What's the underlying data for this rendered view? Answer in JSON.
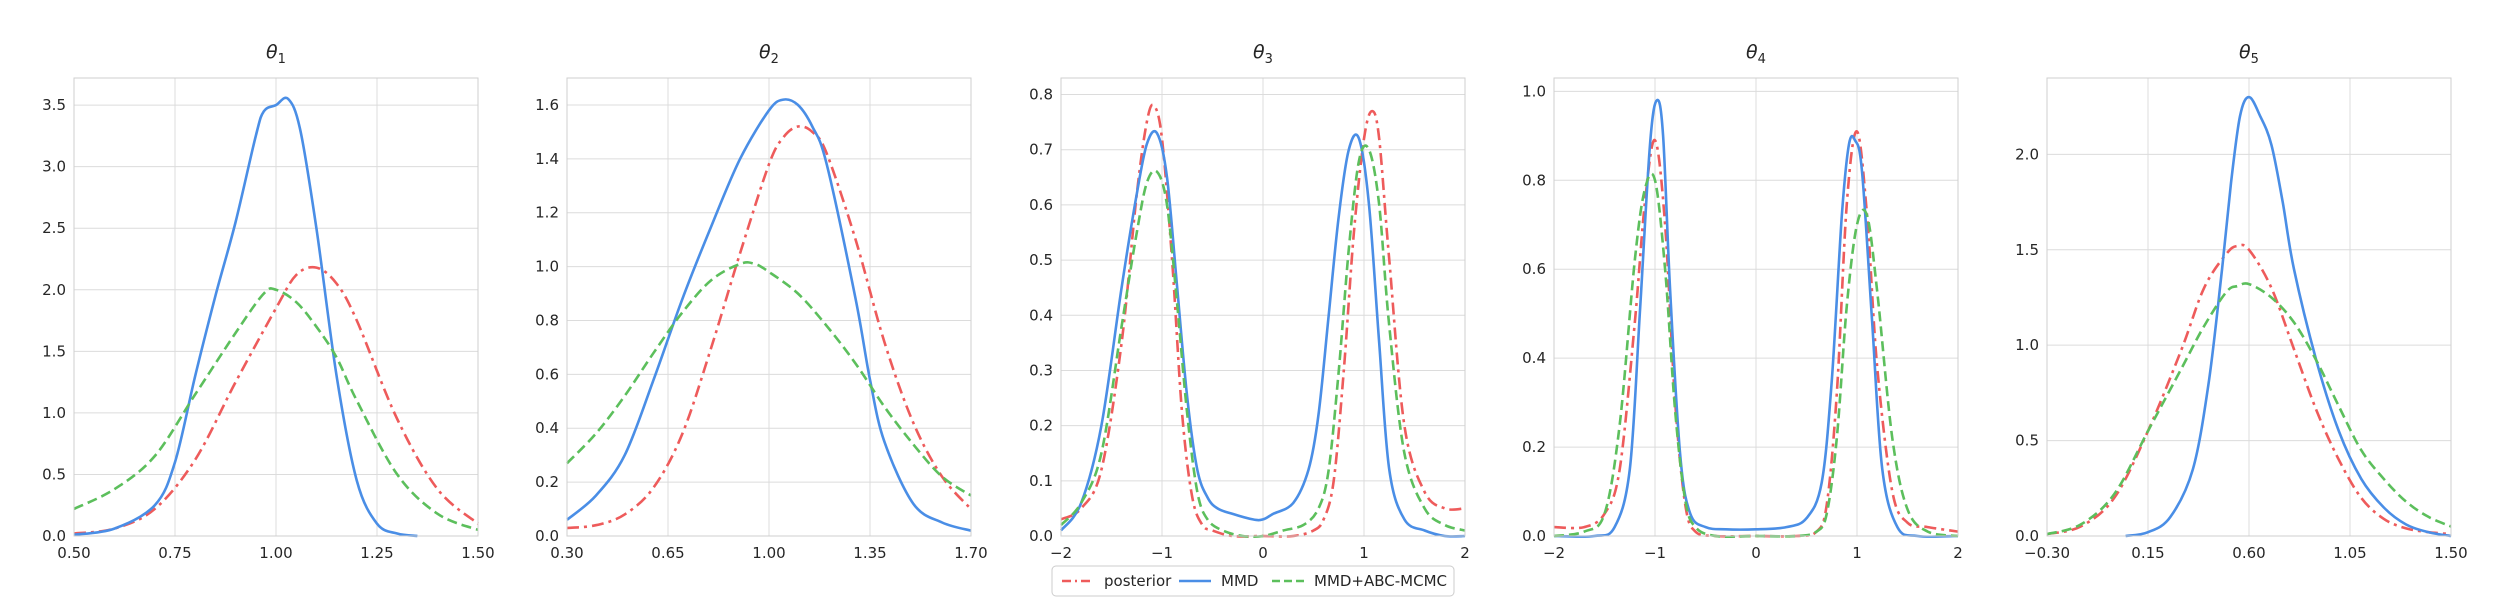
{
  "legend": {
    "entries": [
      {
        "name": "posterior",
        "color": "#ee5b5b",
        "dash": "dashdot"
      },
      {
        "name": "MMD",
        "color": "#4a8ee6",
        "dash": "solid"
      },
      {
        "name": "MMD+ABC-MCMC",
        "color": "#5cbf5c",
        "dash": "dashed"
      }
    ],
    "placement": "bottom-center"
  },
  "chart_data": [
    {
      "type": "line",
      "title": "θ",
      "title_subscript": "1",
      "grid": true,
      "xlim": [
        0.5,
        1.5
      ],
      "ylim": [
        0,
        3.72
      ],
      "xticks": [
        0.5,
        0.75,
        1.0,
        1.25,
        1.5
      ],
      "xtick_labels": [
        "0.50",
        "0.75",
        "1.00",
        "1.25",
        "1.50"
      ],
      "yticks": [
        0,
        0.5,
        1.0,
        1.5,
        2.0,
        2.5,
        3.0,
        3.5
      ],
      "ytick_labels": [
        "0.0",
        "0.5",
        "1.0",
        "1.5",
        "2.0",
        "2.5",
        "3.0",
        "3.5"
      ],
      "series": [
        {
          "name": "posterior",
          "x": [
            0.5,
            0.6,
            0.7,
            0.8,
            0.9,
            1.0,
            1.05,
            1.1,
            1.15,
            1.2,
            1.3,
            1.4,
            1.5
          ],
          "y": [
            0.02,
            0.06,
            0.22,
            0.62,
            1.25,
            1.85,
            2.12,
            2.18,
            2.05,
            1.75,
            0.95,
            0.38,
            0.1
          ]
        },
        {
          "name": "MMD",
          "x": [
            0.5,
            0.6,
            0.7,
            0.75,
            0.8,
            0.85,
            0.9,
            0.95,
            0.97,
            1.0,
            1.03,
            1.06,
            1.1,
            1.15,
            1.2,
            1.25,
            1.3,
            1.35
          ],
          "y": [
            0.01,
            0.06,
            0.25,
            0.6,
            1.3,
            1.95,
            2.55,
            3.25,
            3.45,
            3.5,
            3.55,
            3.3,
            2.5,
            1.3,
            0.45,
            0.1,
            0.02,
            0.0
          ]
        },
        {
          "name": "MMD+ABC-MCMC",
          "x": [
            0.5,
            0.6,
            0.7,
            0.8,
            0.9,
            0.97,
            1.0,
            1.05,
            1.1,
            1.15,
            1.2,
            1.3,
            1.4,
            1.5
          ],
          "y": [
            0.22,
            0.38,
            0.65,
            1.15,
            1.65,
            1.97,
            2.0,
            1.9,
            1.7,
            1.45,
            1.1,
            0.5,
            0.18,
            0.05
          ]
        }
      ]
    },
    {
      "type": "line",
      "title": "θ",
      "title_subscript": "2",
      "grid": true,
      "xlim": [
        0.3,
        1.7
      ],
      "ylim": [
        0,
        1.7
      ],
      "xticks": [
        0.3,
        0.65,
        1.0,
        1.35,
        1.7
      ],
      "xtick_labels": [
        "0.30",
        "0.65",
        "1.00",
        "1.35",
        "1.70"
      ],
      "yticks": [
        0,
        0.2,
        0.4,
        0.6,
        0.8,
        1.0,
        1.2,
        1.4,
        1.6
      ],
      "ytick_labels": [
        "0.0",
        "0.2",
        "0.4",
        "0.6",
        "0.8",
        "1.0",
        "1.2",
        "1.4",
        "1.6"
      ],
      "series": [
        {
          "name": "posterior",
          "x": [
            0.3,
            0.4,
            0.5,
            0.6,
            0.7,
            0.8,
            0.9,
            1.0,
            1.05,
            1.1,
            1.15,
            1.2,
            1.3,
            1.4,
            1.5,
            1.6,
            1.7
          ],
          "y": [
            0.03,
            0.04,
            0.08,
            0.18,
            0.38,
            0.7,
            1.05,
            1.38,
            1.48,
            1.52,
            1.5,
            1.42,
            1.1,
            0.72,
            0.42,
            0.22,
            0.1
          ]
        },
        {
          "name": "MMD",
          "x": [
            0.3,
            0.4,
            0.5,
            0.6,
            0.7,
            0.8,
            0.9,
            1.0,
            1.05,
            1.1,
            1.15,
            1.2,
            1.3,
            1.35,
            1.4,
            1.5,
            1.6,
            1.7
          ],
          "y": [
            0.06,
            0.15,
            0.3,
            0.58,
            0.88,
            1.15,
            1.4,
            1.58,
            1.62,
            1.6,
            1.52,
            1.38,
            0.88,
            0.58,
            0.35,
            0.12,
            0.05,
            0.02
          ]
        },
        {
          "name": "MMD+ABC-MCMC",
          "x": [
            0.3,
            0.4,
            0.5,
            0.6,
            0.7,
            0.8,
            0.9,
            0.95,
            1.0,
            1.1,
            1.2,
            1.3,
            1.4,
            1.5,
            1.6,
            1.7
          ],
          "y": [
            0.27,
            0.38,
            0.52,
            0.68,
            0.83,
            0.95,
            1.01,
            1.01,
            0.98,
            0.9,
            0.78,
            0.64,
            0.48,
            0.34,
            0.22,
            0.15
          ]
        }
      ]
    },
    {
      "type": "line",
      "title": "θ",
      "title_subscript": "3",
      "grid": true,
      "xlim": [
        -2,
        2
      ],
      "ylim": [
        0,
        0.83
      ],
      "xticks": [
        -2,
        -1,
        0,
        1,
        2
      ],
      "xtick_labels": [
        "−2",
        "−1",
        "0",
        "1",
        "2"
      ],
      "yticks": [
        0,
        0.1,
        0.2,
        0.3,
        0.4,
        0.5,
        0.6,
        0.7,
        0.8
      ],
      "ytick_labels": [
        "0.0",
        "0.1",
        "0.2",
        "0.3",
        "0.4",
        "0.5",
        "0.6",
        "0.7",
        "0.8"
      ],
      "series": [
        {
          "name": "posterior",
          "x": [
            -2,
            -1.8,
            -1.6,
            -1.4,
            -1.25,
            -1.15,
            -1.08,
            -1.0,
            -0.9,
            -0.8,
            -0.7,
            -0.6,
            -0.5,
            -0.3,
            0,
            0.3,
            0.5,
            0.6,
            0.7,
            0.8,
            0.9,
            1.0,
            1.08,
            1.15,
            1.25,
            1.4,
            1.6,
            1.8,
            2.0
          ],
          "y": [
            0.03,
            0.05,
            0.12,
            0.35,
            0.62,
            0.75,
            0.78,
            0.72,
            0.5,
            0.22,
            0.07,
            0.02,
            0.01,
            0.0,
            0.0,
            0.0,
            0.01,
            0.03,
            0.1,
            0.3,
            0.55,
            0.72,
            0.77,
            0.72,
            0.5,
            0.2,
            0.08,
            0.05,
            0.05
          ]
        },
        {
          "name": "MMD",
          "x": [
            -2,
            -1.8,
            -1.6,
            -1.4,
            -1.25,
            -1.15,
            -1.05,
            -0.95,
            -0.85,
            -0.75,
            -0.65,
            -0.55,
            -0.45,
            -0.3,
            -0.1,
            0,
            0.1,
            0.3,
            0.45,
            0.55,
            0.65,
            0.75,
            0.85,
            0.95,
            1.05,
            1.15,
            1.25,
            1.4,
            1.6,
            1.8,
            2.0
          ],
          "y": [
            0.01,
            0.06,
            0.2,
            0.45,
            0.62,
            0.71,
            0.73,
            0.65,
            0.45,
            0.25,
            0.12,
            0.07,
            0.05,
            0.04,
            0.03,
            0.03,
            0.04,
            0.06,
            0.12,
            0.22,
            0.4,
            0.58,
            0.7,
            0.72,
            0.6,
            0.35,
            0.12,
            0.03,
            0.01,
            0.0,
            0.0
          ]
        },
        {
          "name": "MMD+ABC-MCMC",
          "x": [
            -2,
            -1.8,
            -1.6,
            -1.4,
            -1.25,
            -1.15,
            -1.05,
            -0.95,
            -0.85,
            -0.75,
            -0.65,
            -0.55,
            -0.4,
            -0.2,
            0,
            0.2,
            0.4,
            0.55,
            0.65,
            0.75,
            0.85,
            0.95,
            1.05,
            1.15,
            1.25,
            1.4,
            1.6,
            1.8,
            2.0
          ],
          "y": [
            0.02,
            0.06,
            0.15,
            0.38,
            0.55,
            0.64,
            0.66,
            0.6,
            0.42,
            0.22,
            0.08,
            0.03,
            0.01,
            0.0,
            0.0,
            0.01,
            0.02,
            0.05,
            0.12,
            0.3,
            0.52,
            0.68,
            0.7,
            0.6,
            0.38,
            0.15,
            0.05,
            0.02,
            0.01
          ]
        }
      ]
    },
    {
      "type": "line",
      "title": "θ",
      "title_subscript": "4",
      "grid": true,
      "xlim": [
        -2,
        2
      ],
      "ylim": [
        0,
        1.03
      ],
      "xticks": [
        -2,
        -1,
        0,
        1,
        2
      ],
      "xtick_labels": [
        "−2",
        "−1",
        "0",
        "1",
        "2"
      ],
      "yticks": [
        0,
        0.2,
        0.4,
        0.6,
        0.8,
        1.0
      ],
      "ytick_labels": [
        "0.0",
        "0.2",
        "0.4",
        "0.6",
        "0.8",
        "1.0"
      ],
      "series": [
        {
          "name": "posterior",
          "x": [
            -2,
            -1.7,
            -1.5,
            -1.35,
            -1.2,
            -1.1,
            -1.0,
            -0.9,
            -0.8,
            -0.7,
            -0.6,
            -0.4,
            0,
            0.4,
            0.6,
            0.7,
            0.8,
            0.9,
            1.0,
            1.1,
            1.2,
            1.35,
            1.5,
            1.7,
            2.0
          ],
          "y": [
            0.02,
            0.02,
            0.05,
            0.15,
            0.48,
            0.75,
            0.89,
            0.7,
            0.3,
            0.07,
            0.01,
            0.0,
            0.0,
            0.0,
            0.01,
            0.07,
            0.32,
            0.75,
            0.91,
            0.72,
            0.38,
            0.1,
            0.03,
            0.02,
            0.01
          ]
        },
        {
          "name": "MMD",
          "x": [
            -2,
            -1.6,
            -1.4,
            -1.25,
            -1.15,
            -1.05,
            -0.98,
            -0.92,
            -0.85,
            -0.75,
            -0.65,
            -0.5,
            -0.3,
            0,
            0.3,
            0.5,
            0.65,
            0.75,
            0.85,
            0.92,
            0.98,
            1.05,
            1.15,
            1.25,
            1.4,
            1.6,
            2.0
          ],
          "y": [
            0.0,
            0.0,
            0.02,
            0.15,
            0.5,
            0.88,
            0.98,
            0.9,
            0.55,
            0.18,
            0.05,
            0.02,
            0.015,
            0.015,
            0.02,
            0.04,
            0.12,
            0.35,
            0.72,
            0.88,
            0.89,
            0.82,
            0.48,
            0.15,
            0.02,
            0.0,
            0.0
          ]
        },
        {
          "name": "MMD+ABC-MCMC",
          "x": [
            -2,
            -1.7,
            -1.5,
            -1.35,
            -1.2,
            -1.1,
            -1.0,
            -0.9,
            -0.8,
            -0.7,
            -0.6,
            -0.4,
            0,
            0.4,
            0.6,
            0.7,
            0.8,
            0.9,
            1.0,
            1.1,
            1.2,
            1.35,
            1.5,
            1.7,
            2.0
          ],
          "y": [
            0.0,
            0.01,
            0.05,
            0.25,
            0.62,
            0.78,
            0.8,
            0.6,
            0.28,
            0.08,
            0.02,
            0.0,
            0.0,
            0.0,
            0.01,
            0.05,
            0.22,
            0.52,
            0.7,
            0.72,
            0.55,
            0.22,
            0.06,
            0.01,
            0.0
          ]
        }
      ]
    },
    {
      "type": "line",
      "title": "θ",
      "title_subscript": "5",
      "grid": true,
      "xlim": [
        -0.3,
        1.5
      ],
      "ylim": [
        0,
        2.4
      ],
      "xticks": [
        -0.3,
        0.15,
        0.6,
        1.05,
        1.5
      ],
      "xtick_labels": [
        "−0.30",
        "0.15",
        "0.60",
        "1.05",
        "1.50"
      ],
      "yticks": [
        0,
        0.5,
        1.0,
        1.5,
        2.0
      ],
      "ytick_labels": [
        "0.0",
        "0.5",
        "1.0",
        "1.5",
        "2.0"
      ],
      "series": [
        {
          "name": "posterior",
          "x": [
            -0.3,
            -0.15,
            0,
            0.15,
            0.3,
            0.4,
            0.5,
            0.55,
            0.6,
            0.7,
            0.8,
            0.9,
            1.0,
            1.1,
            1.2,
            1.3,
            1.4,
            1.5
          ],
          "y": [
            0.01,
            0.05,
            0.2,
            0.55,
            0.98,
            1.3,
            1.48,
            1.52,
            1.5,
            1.3,
            0.98,
            0.66,
            0.4,
            0.2,
            0.09,
            0.04,
            0.02,
            0.01
          ]
        },
        {
          "name": "MMD",
          "x": [
            0.05,
            0.15,
            0.25,
            0.35,
            0.42,
            0.48,
            0.52,
            0.56,
            0.6,
            0.65,
            0.7,
            0.75,
            0.8,
            0.9,
            1.0,
            1.1,
            1.2,
            1.3,
            1.4,
            1.5
          ],
          "y": [
            0.0,
            0.02,
            0.1,
            0.35,
            0.8,
            1.4,
            1.85,
            2.2,
            2.3,
            2.2,
            2.05,
            1.75,
            1.4,
            0.92,
            0.55,
            0.3,
            0.15,
            0.06,
            0.02,
            0.0
          ]
        },
        {
          "name": "MMD+ABC-MCMC",
          "x": [
            -0.3,
            -0.15,
            0,
            0.15,
            0.3,
            0.4,
            0.5,
            0.55,
            0.6,
            0.7,
            0.8,
            0.9,
            1.0,
            1.1,
            1.2,
            1.3,
            1.4,
            1.5
          ],
          "y": [
            0.01,
            0.06,
            0.22,
            0.55,
            0.88,
            1.1,
            1.28,
            1.31,
            1.32,
            1.25,
            1.12,
            0.92,
            0.68,
            0.45,
            0.3,
            0.18,
            0.1,
            0.05
          ]
        }
      ]
    }
  ]
}
